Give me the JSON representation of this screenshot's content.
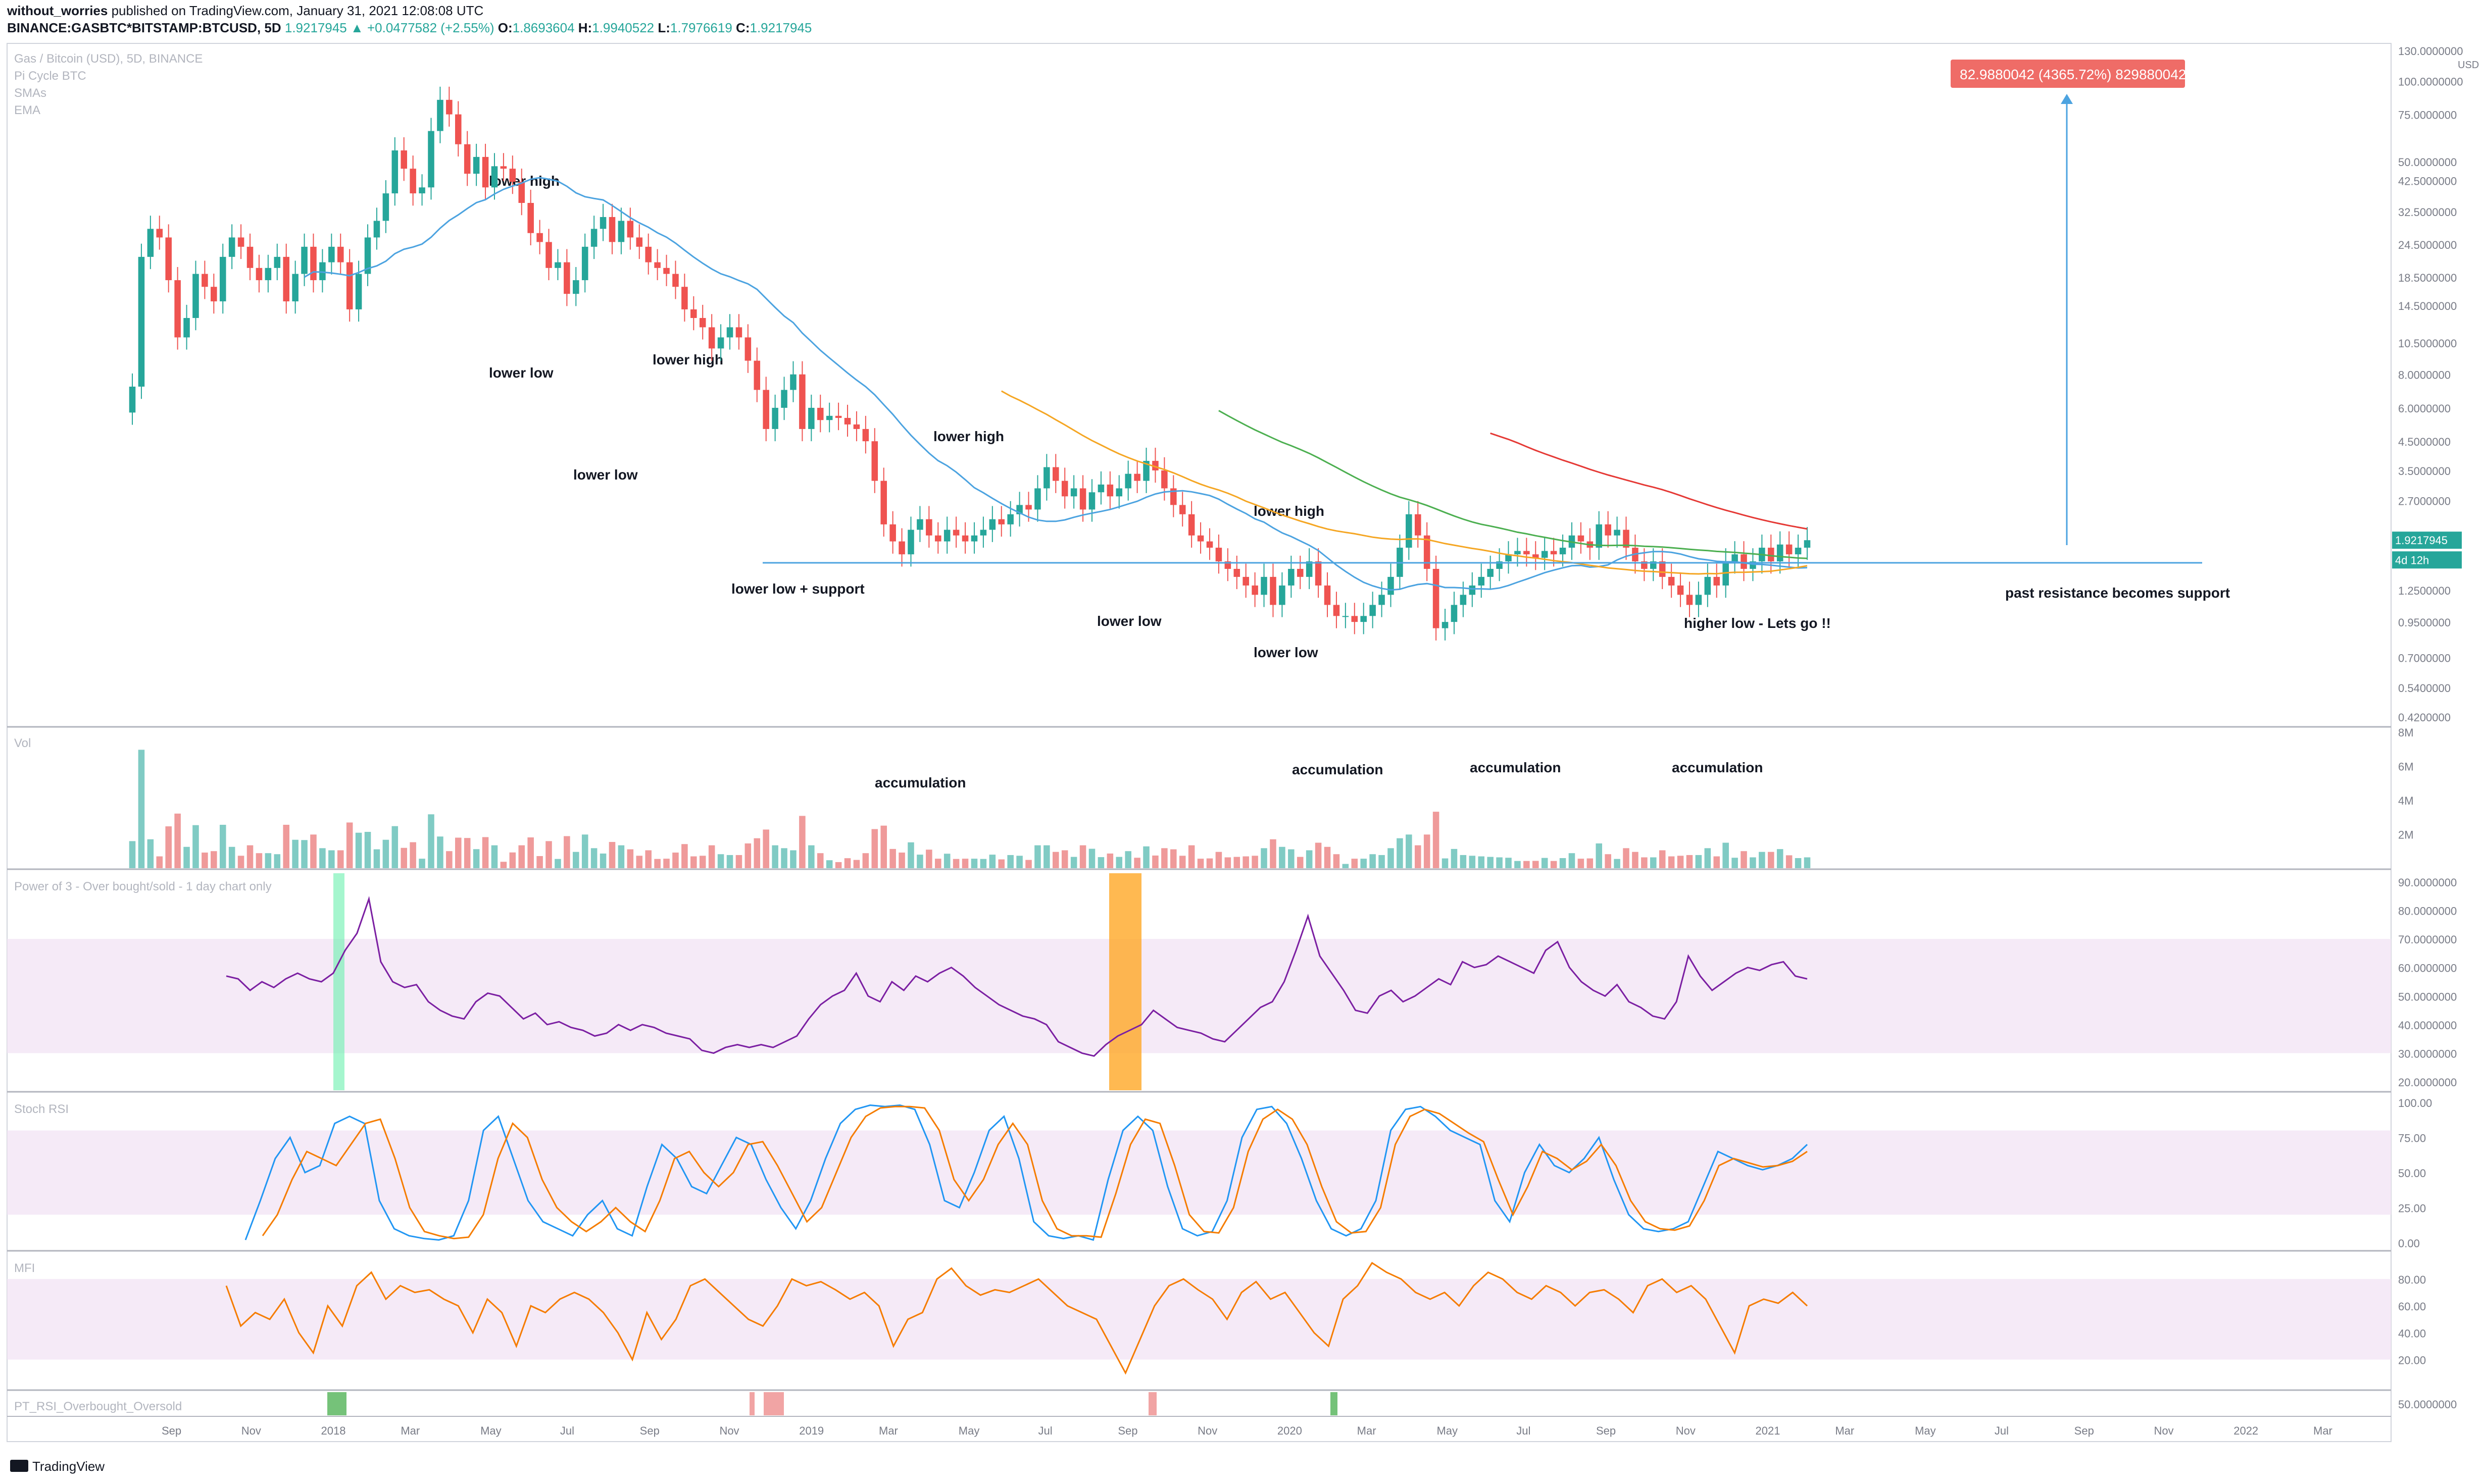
{
  "header": {
    "line1_user": "without_worries",
    "line1_rest": "published on TradingView.com, January 31, 2021 12:08:08 UTC",
    "symbol": "BINANCE:GASBTC*BITSTAMP:BTCUSD, 5D",
    "last": "1.9217945",
    "change_arrow": "▲",
    "change": "+0.0477582 (+2.55%)",
    "o_label": "O:",
    "o_value": "1.8693604",
    "h_label": "H:",
    "h_value": "1.9940522",
    "l_label": "L:",
    "l_value": "1.7976619",
    "c_label": "C:",
    "c_value": "1.9217945"
  },
  "legend": {
    "title": "Gas / Bitcoin (USD), 5D, BINANCE",
    "items": [
      "Pi Cycle BTC",
      "SMAs",
      "EMA"
    ]
  },
  "footer": {
    "brand": "TradingView"
  },
  "colors": {
    "up": "#26a69a",
    "down": "#ef5350",
    "sma_blue": "#4ca3e0",
    "sma_orange": "#f5a623",
    "sma_green": "#4caf50",
    "sma_red": "#e53935",
    "power": "#7b1fa2",
    "stoch_k": "#2196f3",
    "stoch_d": "#f57c00",
    "mfi": "#f57c00",
    "band": "#f3e5f5"
  },
  "chart_data": [
    {
      "type": "candlestick",
      "title": "Gas / Bitcoin (USD), 5D, BINANCE",
      "scale": "log",
      "ylim": [
        0.42,
        130
      ],
      "y_ticks": [
        "130.0000000",
        "100.0000000",
        "75.0000000",
        "50.0000000",
        "42.5000000",
        "32.5000000",
        "24.5000000",
        "18.5000000",
        "14.5000000",
        "10.5000000",
        "8.0000000",
        "6.0000000",
        "4.5000000",
        "3.5000000",
        "2.7000000",
        "1.2500000",
        "0.9500000",
        "0.7000000",
        "0.5400000",
        "0.4200000"
      ],
      "y_tick_values": [
        130,
        100,
        75,
        50,
        42.5,
        32.5,
        24.5,
        18.5,
        14.5,
        10.5,
        8,
        6,
        4.5,
        3.5,
        2.7,
        1.25,
        0.95,
        0.7,
        0.54,
        0.42
      ],
      "y_unit": "USD",
      "x_ticks": [
        "Sep",
        "Nov",
        "2018",
        "Mar",
        "May",
        "Jul",
        "Sep",
        "Nov",
        "2019",
        "Mar",
        "May",
        "Jul",
        "Sep",
        "Nov",
        "2020",
        "Mar",
        "May",
        "Jul",
        "Sep",
        "Nov",
        "2021",
        "Mar",
        "May",
        "Jul",
        "Sep",
        "Nov",
        "2022",
        "Mar"
      ],
      "price_tags": [
        {
          "label": "1.9217945",
          "value": 1.92,
          "color": "#26a69a"
        },
        {
          "label": "4d 12h",
          "value": 1.62,
          "color": "#26a69a"
        }
      ],
      "measure_label": "82.9880042 (4365.72%) 829880042",
      "support_level": 1.58,
      "closes": [
        7.2,
        22,
        28,
        26,
        18,
        11,
        13,
        19,
        17,
        15,
        22,
        26,
        24,
        20,
        18,
        20,
        22,
        15,
        19,
        24,
        18,
        21,
        24,
        21,
        14,
        19,
        26,
        30,
        38,
        55,
        47,
        38,
        40,
        65,
        85,
        75,
        58,
        45,
        52,
        40,
        48,
        47,
        42,
        35,
        27,
        25,
        20,
        21,
        16,
        18,
        24,
        28,
        31,
        25,
        30,
        26,
        24,
        21,
        20,
        19,
        17,
        14,
        13,
        12,
        10,
        11,
        12,
        11,
        9,
        7,
        5,
        6,
        7,
        8,
        5,
        6,
        5.4,
        5.6,
        5.5,
        5.2,
        5.0,
        4.5,
        3.2,
        2.2,
        1.9,
        1.7,
        2.1,
        2.3,
        2.0,
        1.9,
        2.1,
        2.0,
        1.9,
        2.0,
        2.1,
        2.3,
        2.2,
        2.4,
        2.6,
        2.5,
        3.0,
        3.6,
        3.2,
        2.8,
        3.0,
        2.5,
        2.9,
        3.1,
        2.8,
        3.0,
        3.4,
        3.2,
        3.8,
        3.5,
        3.0,
        2.6,
        2.4,
        2.0,
        1.9,
        1.8,
        1.6,
        1.5,
        1.4,
        1.3,
        1.2,
        1.4,
        1.1,
        1.3,
        1.5,
        1.4,
        1.6,
        1.3,
        1.1,
        1.0,
        1.0,
        0.95,
        1.0,
        1.1,
        1.2,
        1.4,
        1.8,
        2.4,
        2.0,
        1.5,
        0.9,
        0.95,
        1.1,
        1.2,
        1.3,
        1.4,
        1.5,
        1.6,
        1.7,
        1.75,
        1.7,
        1.65,
        1.75,
        1.7,
        1.8,
        2.0,
        1.9,
        1.8,
        2.2,
        2.0,
        2.1,
        1.8,
        1.6,
        1.5,
        1.6,
        1.4,
        1.3,
        1.2,
        1.1,
        1.2,
        1.4,
        1.3,
        1.6,
        1.7,
        1.5,
        1.6,
        1.8,
        1.6,
        1.85,
        1.7,
        1.8,
        1.92
      ]
    },
    {
      "type": "bar",
      "title": "Vol",
      "y_ticks": [
        "8M",
        "6M",
        "4M",
        "2M"
      ],
      "y_tick_values": [
        8,
        6,
        4,
        2
      ],
      "ylim": [
        0,
        8
      ],
      "annotations": [
        "accumulation",
        "accumulation",
        "accumulation",
        "accumulation"
      ]
    },
    {
      "type": "line",
      "title": "Power of 3 - Over bought/sold - 1 day chart only",
      "ylim": [
        17,
        93
      ],
      "y_ticks": [
        "90.0000000",
        "80.0000000",
        "70.0000000",
        "60.0000000",
        "50.0000000",
        "40.0000000",
        "30.0000000",
        "20.0000000"
      ],
      "y_tick_values": [
        90,
        80,
        70,
        60,
        50,
        40,
        30,
        20
      ],
      "band": [
        30,
        70
      ],
      "values": [
        57,
        56,
        52,
        55,
        53,
        56,
        58,
        56,
        55,
        58,
        66,
        72,
        84,
        62,
        55,
        53,
        54,
        48,
        45,
        43,
        42,
        48,
        51,
        50,
        46,
        42,
        44,
        40,
        41,
        39,
        38,
        36,
        37,
        40,
        38,
        40,
        39,
        37,
        36,
        35,
        31,
        30,
        32,
        33,
        32,
        33,
        32,
        34,
        36,
        42,
        47,
        50,
        52,
        58,
        50,
        48,
        55,
        52,
        57,
        55,
        58,
        60,
        57,
        53,
        50,
        47,
        45,
        43,
        42,
        40,
        34,
        32,
        30,
        29,
        33,
        36,
        38,
        40,
        45,
        42,
        39,
        38,
        37,
        35,
        34,
        38,
        42,
        46,
        48,
        55,
        66,
        78,
        64,
        58,
        52,
        45,
        44,
        50,
        52,
        48,
        50,
        53,
        56,
        54,
        62,
        60,
        61,
        64,
        62,
        60,
        58,
        66,
        69,
        60,
        55,
        52,
        50,
        54,
        48,
        46,
        43,
        42,
        48,
        64,
        57,
        52,
        55,
        58,
        60,
        59,
        61,
        62,
        57,
        56
      ]
    },
    {
      "type": "line",
      "title": "Stoch RSI",
      "ylim": [
        -5,
        105
      ],
      "y_ticks": [
        "100.00",
        "75.00",
        "50.00",
        "25.00",
        "0.00"
      ],
      "y_tick_values": [
        100,
        75,
        50,
        25,
        0
      ],
      "band": [
        20,
        80
      ],
      "series": [
        {
          "name": "",
          "color": "#2196f3",
          "values": [
            2,
            30,
            60,
            75,
            50,
            55,
            85,
            90,
            85,
            30,
            10,
            5,
            3,
            2,
            5,
            30,
            80,
            90,
            60,
            30,
            15,
            10,
            5,
            20,
            30,
            10,
            5,
            40,
            70,
            60,
            40,
            35,
            55,
            75,
            70,
            45,
            25,
            10,
            30,
            60,
            85,
            95,
            98,
            97,
            98,
            95,
            70,
            30,
            25,
            50,
            80,
            90,
            60,
            15,
            5,
            3,
            5,
            2,
            45,
            80,
            90,
            80,
            40,
            10,
            5,
            8,
            30,
            75,
            95,
            97,
            85,
            60,
            30,
            10,
            5,
            10,
            30,
            80,
            95,
            97,
            90,
            80,
            75,
            70,
            30,
            15,
            50,
            70,
            55,
            50,
            60,
            75,
            45,
            20,
            10,
            8,
            10,
            15,
            40,
            65,
            60,
            55,
            52,
            55,
            60,
            70
          ]
        },
        {
          "name": "",
          "color": "#f57c00",
          "values": [
            5,
            20,
            45,
            65,
            60,
            55,
            70,
            85,
            88,
            60,
            25,
            8,
            5,
            3,
            4,
            20,
            60,
            85,
            75,
            45,
            25,
            15,
            8,
            15,
            25,
            15,
            8,
            30,
            60,
            65,
            50,
            40,
            50,
            70,
            72,
            55,
            35,
            15,
            25,
            50,
            75,
            90,
            96,
            97,
            97,
            96,
            80,
            45,
            30,
            45,
            70,
            85,
            70,
            30,
            10,
            5,
            5,
            4,
            35,
            70,
            88,
            85,
            55,
            20,
            8,
            7,
            25,
            65,
            88,
            95,
            88,
            70,
            40,
            15,
            7,
            8,
            25,
            70,
            90,
            95,
            92,
            85,
            78,
            72,
            45,
            20,
            40,
            65,
            60,
            52,
            58,
            70,
            55,
            30,
            15,
            10,
            9,
            12,
            30,
            55,
            60,
            57,
            54,
            55,
            58,
            65
          ]
        }
      ]
    },
    {
      "type": "line",
      "title": "MFI",
      "ylim": [
        -2,
        98
      ],
      "y_ticks": [
        "80.00",
        "60.00",
        "40.00",
        "20.00"
      ],
      "y_tick_values": [
        80,
        60,
        40,
        20
      ],
      "band": [
        20,
        80
      ],
      "values": [
        75,
        45,
        55,
        50,
        65,
        40,
        25,
        60,
        45,
        75,
        85,
        65,
        75,
        70,
        72,
        65,
        60,
        40,
        65,
        55,
        30,
        60,
        55,
        65,
        70,
        65,
        55,
        40,
        20,
        55,
        35,
        50,
        75,
        80,
        70,
        60,
        50,
        45,
        60,
        80,
        75,
        78,
        72,
        65,
        70,
        60,
        30,
        50,
        55,
        80,
        88,
        75,
        68,
        72,
        70,
        75,
        80,
        70,
        60,
        55,
        50,
        30,
        10,
        35,
        60,
        75,
        80,
        72,
        65,
        50,
        70,
        78,
        65,
        70,
        55,
        40,
        30,
        65,
        75,
        92,
        85,
        80,
        70,
        65,
        70,
        60,
        75,
        85,
        80,
        70,
        65,
        75,
        70,
        60,
        70,
        72,
        65,
        55,
        75,
        80,
        70,
        75,
        65,
        45,
        25,
        60,
        65,
        62,
        70,
        60
      ]
    },
    {
      "type": "bar",
      "title": "PT_RSI_Overbought_Oversold",
      "y_ticks": [
        "50.0000000"
      ],
      "y_tick_values": [
        50
      ]
    }
  ],
  "annotations": {
    "lower_high_1": "lower high",
    "lower_low_1": "lower low",
    "lower_high_2": "lower high",
    "lower_low_2": "lower low",
    "lower_low_support": "lower low + support",
    "lower_high_3": "lower high",
    "lower_low_3": "lower low",
    "lower_high_4": "lower high",
    "lower_low_4": "lower low",
    "higher_low": "higher low - Lets go !!",
    "past_resistance": "past resistance becomes support",
    "accumulation_1": "accumulation",
    "accumulation_2": "accumulation",
    "accumulation_3": "accumulation",
    "accumulation_4": "accumulation"
  }
}
